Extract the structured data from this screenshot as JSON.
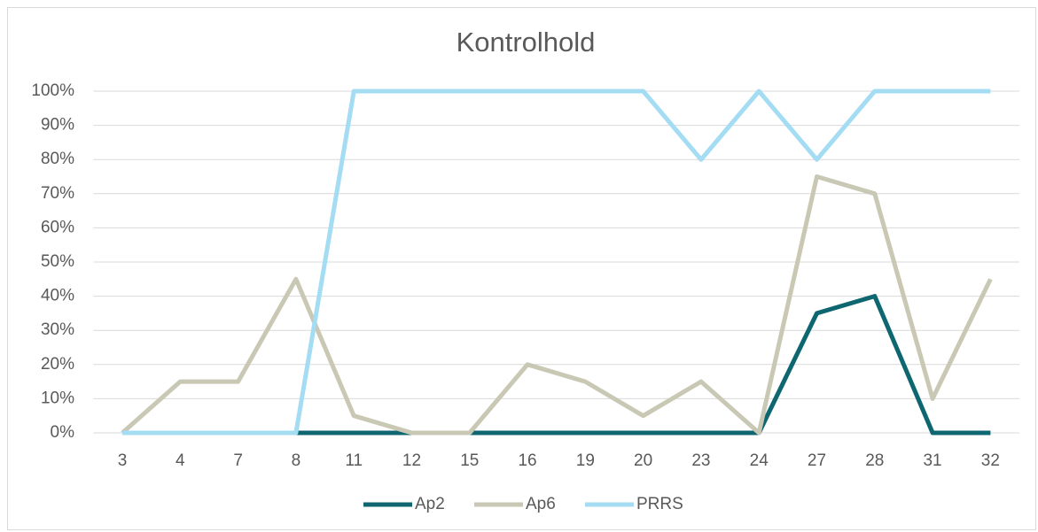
{
  "chart_data": {
    "type": "line",
    "title": "Kontrolhold",
    "categories": [
      "3",
      "4",
      "7",
      "8",
      "11",
      "12",
      "15",
      "16",
      "19",
      "20",
      "23",
      "24",
      "27",
      "28",
      "31",
      "32"
    ],
    "series": [
      {
        "name": "Ap2",
        "color": "#0e6670",
        "values": [
          0,
          0,
          0,
          0,
          0,
          0,
          0,
          0,
          0,
          0,
          0,
          0,
          35,
          40,
          0,
          0
        ]
      },
      {
        "name": "Ap6",
        "color": "#c9c8b4",
        "values": [
          0,
          15,
          15,
          45,
          5,
          0,
          0,
          20,
          15,
          5,
          15,
          0,
          75,
          70,
          10,
          45
        ]
      },
      {
        "name": "PRRS",
        "color": "#a3dcf3",
        "values": [
          0,
          0,
          0,
          0,
          100,
          100,
          100,
          100,
          100,
          100,
          80,
          100,
          80,
          100,
          100,
          100
        ]
      }
    ],
    "ylim": [
      0,
      100
    ],
    "yticks": [
      {
        "value": 0,
        "label": "0%"
      },
      {
        "value": 10,
        "label": "10%"
      },
      {
        "value": 20,
        "label": "20%"
      },
      {
        "value": 30,
        "label": "30%"
      },
      {
        "value": 40,
        "label": "40%"
      },
      {
        "value": 50,
        "label": "50%"
      },
      {
        "value": 60,
        "label": "60%"
      },
      {
        "value": 70,
        "label": "70%"
      },
      {
        "value": 80,
        "label": "80%"
      },
      {
        "value": 90,
        "label": "90%"
      },
      {
        "value": 100,
        "label": "100%"
      }
    ],
    "grid": true,
    "legend": "bottom"
  }
}
